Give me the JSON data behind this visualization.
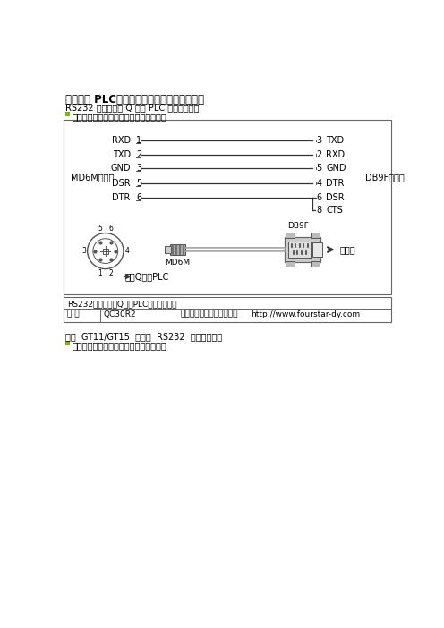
{
  "title": "三菱系列 PLC、触摸屏等工控电缆的制作图纸",
  "subtitle1": "RS232 接口的三菱 Q 系列 PLC 编程通讯电缆",
  "subtitle2": "此主题相关图片如下，点击图片看大图：",
  "subtitle3": "三菱  GT11/GT15  触摸屏  RS232  串口编程电缆",
  "subtitle4": "此主题相关图片如下，点击图片看大图：",
  "box_title": "RS232接口的三菱Q系列PLC编程通讯电缆",
  "table_label": "型 号",
  "table_value1": "QC30R2",
  "table_value2": "德阳四星电子技术开发中心",
  "table_value3": "http://www.fourstar-dy.com",
  "left_connector": "MD6M（针）",
  "right_connector": "DB9F（孔）",
  "signals_left": [
    "RXD",
    "TXD",
    "GND",
    "DSR",
    "DTR"
  ],
  "signals_right": [
    "TXD",
    "RXD",
    "GND",
    "DTR",
    "DSR",
    "CTS"
  ],
  "pins_left": [
    "1",
    "2",
    "3",
    "5",
    "6"
  ],
  "pins_right": [
    "3",
    "2",
    "5",
    "4",
    "6",
    "8"
  ],
  "plc_label": "三菱Q系列PLC",
  "arrow_label": "计算机",
  "connector_bottom_left": "MD6M",
  "connector_bottom_right": "DB9F",
  "bg_color": "#ffffff",
  "text_color": "#000000",
  "box_line_color": "#666666",
  "wire_color": "#333333"
}
